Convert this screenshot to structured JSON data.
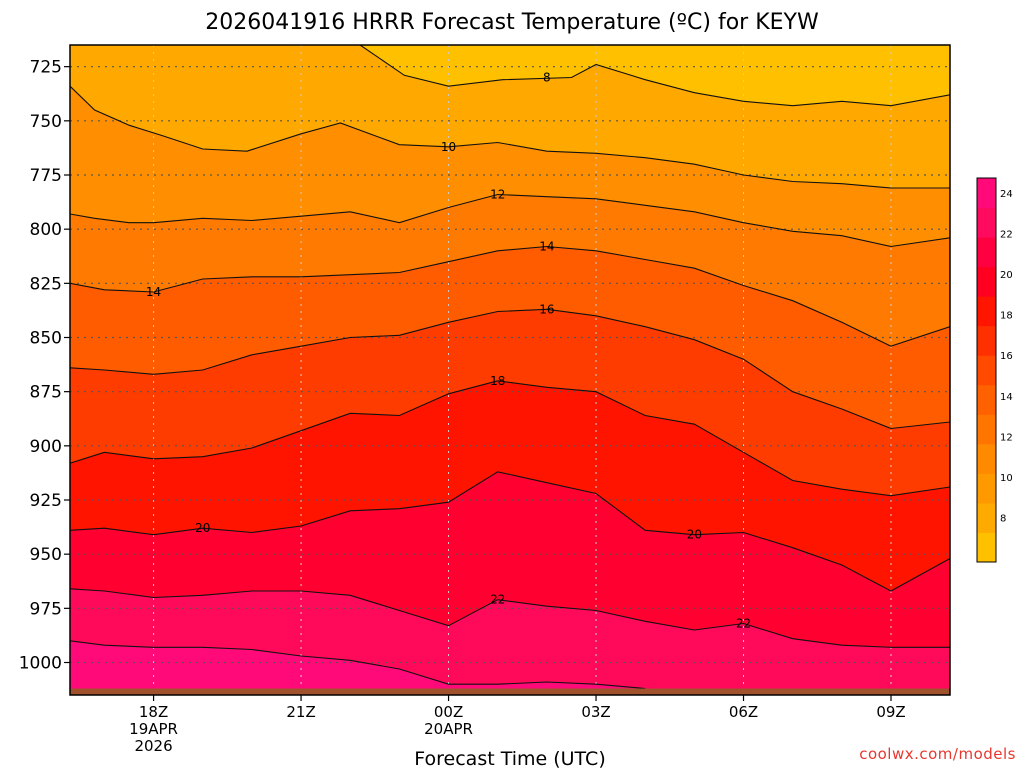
{
  "chart_data": {
    "type": "contour",
    "title": "2026041916 HRRR Forecast Temperature (ºC) for KEYW",
    "xlabel": "Forecast Time (UTC)",
    "ylabel": "",
    "credit": "coolwx.com/models",
    "x_range": [
      16.3,
      34.2
    ],
    "y_range": [
      715,
      1015
    ],
    "y_ticks": [
      725,
      750,
      775,
      800,
      825,
      850,
      875,
      900,
      925,
      950,
      975,
      1000
    ],
    "x_ticks": [
      {
        "x": 18,
        "lines": [
          "18Z",
          "19APR",
          "2026"
        ]
      },
      {
        "x": 21,
        "lines": [
          "21Z"
        ]
      },
      {
        "x": 24,
        "lines": [
          "00Z",
          "20APR"
        ]
      },
      {
        "x": 27,
        "lines": [
          "03Z"
        ]
      },
      {
        "x": 30,
        "lines": [
          "06Z"
        ]
      },
      {
        "x": 33,
        "lines": [
          "09Z"
        ]
      }
    ],
    "grid": true,
    "colorbar": {
      "ticks": [
        8,
        10,
        12,
        14,
        16,
        18,
        20,
        22,
        24
      ],
      "colors": [
        "#ffc000",
        "#ffaa00",
        "#ff9900",
        "#ff8a00",
        "#ff7500",
        "#ff6000",
        "#ff4a00",
        "#ff3000",
        "#ff1500",
        "#ff0020",
        "#ff0040",
        "#ff0a5e",
        "#ff0a78"
      ]
    },
    "contours": [
      {
        "level": 8,
        "points": [
          [
            22.2,
            715
          ],
          [
            23.1,
            729
          ],
          [
            24.0,
            734
          ],
          [
            25.1,
            731
          ],
          [
            26.5,
            730
          ],
          [
            27.0,
            724
          ],
          [
            28.0,
            731
          ],
          [
            29.0,
            737
          ],
          [
            30.0,
            741
          ],
          [
            31.0,
            743
          ],
          [
            32.0,
            741
          ],
          [
            33.0,
            743
          ],
          [
            34.2,
            738
          ]
        ]
      },
      {
        "level": 10,
        "points": [
          [
            16.3,
            734
          ],
          [
            16.8,
            745
          ],
          [
            17.5,
            752
          ],
          [
            18.2,
            757
          ],
          [
            19.0,
            763
          ],
          [
            19.9,
            764
          ],
          [
            21.0,
            756
          ],
          [
            21.8,
            751
          ],
          [
            23.0,
            761
          ],
          [
            24.0,
            762
          ],
          [
            25.0,
            760
          ],
          [
            26.0,
            764
          ],
          [
            27.0,
            765
          ],
          [
            28.0,
            767
          ],
          [
            29.0,
            770
          ],
          [
            30.0,
            775
          ],
          [
            31.0,
            778
          ],
          [
            32.0,
            779
          ],
          [
            33.0,
            781
          ],
          [
            34.2,
            781
          ]
        ]
      },
      {
        "level": 12,
        "points": [
          [
            16.3,
            793
          ],
          [
            16.8,
            795
          ],
          [
            17.5,
            797
          ],
          [
            18.0,
            797
          ],
          [
            19.0,
            795
          ],
          [
            20.0,
            796
          ],
          [
            21.0,
            794
          ],
          [
            22.0,
            792
          ],
          [
            23.0,
            797
          ],
          [
            24.0,
            790
          ],
          [
            25.0,
            784
          ],
          [
            26.0,
            785
          ],
          [
            27.0,
            786
          ],
          [
            28.0,
            789
          ],
          [
            29.0,
            792
          ],
          [
            30.0,
            797
          ],
          [
            31.0,
            801
          ],
          [
            32.0,
            803
          ],
          [
            33.0,
            808
          ],
          [
            34.2,
            804
          ]
        ]
      },
      {
        "level": 14,
        "points": [
          [
            16.3,
            825
          ],
          [
            17.0,
            828
          ],
          [
            18.0,
            829
          ],
          [
            19.0,
            823
          ],
          [
            20.0,
            822
          ],
          [
            21.0,
            822
          ],
          [
            22.0,
            821
          ],
          [
            23.0,
            820
          ],
          [
            24.0,
            815
          ],
          [
            25.0,
            810
          ],
          [
            26.0,
            808
          ],
          [
            27.0,
            810
          ],
          [
            28.0,
            814
          ],
          [
            29.0,
            818
          ],
          [
            30.0,
            826
          ],
          [
            31.0,
            833
          ],
          [
            32.0,
            843
          ],
          [
            33.0,
            854
          ],
          [
            34.2,
            845
          ]
        ]
      },
      {
        "level": 16,
        "points": [
          [
            16.3,
            864
          ],
          [
            17.0,
            865
          ],
          [
            18.0,
            867
          ],
          [
            19.0,
            865
          ],
          [
            20.0,
            858
          ],
          [
            21.0,
            854
          ],
          [
            22.0,
            850
          ],
          [
            23.0,
            849
          ],
          [
            24.0,
            843
          ],
          [
            25.0,
            838
          ],
          [
            26.0,
            837
          ],
          [
            27.0,
            840
          ],
          [
            28.0,
            845
          ],
          [
            29.0,
            851
          ],
          [
            30.0,
            860
          ],
          [
            31.0,
            875
          ],
          [
            32.0,
            883
          ],
          [
            33.0,
            892
          ],
          [
            34.2,
            889
          ]
        ]
      },
      {
        "level": 18,
        "points": [
          [
            16.3,
            908
          ],
          [
            17.0,
            903
          ],
          [
            18.0,
            906
          ],
          [
            19.0,
            905
          ],
          [
            20.0,
            901
          ],
          [
            21.0,
            893
          ],
          [
            22.0,
            885
          ],
          [
            23.0,
            886
          ],
          [
            24.0,
            876
          ],
          [
            25.0,
            870
          ],
          [
            26.0,
            873
          ],
          [
            27.0,
            875
          ],
          [
            28.0,
            886
          ],
          [
            29.0,
            890
          ],
          [
            30.0,
            903
          ],
          [
            31.0,
            916
          ],
          [
            32.0,
            920
          ],
          [
            33.0,
            923
          ],
          [
            34.2,
            919
          ]
        ]
      },
      {
        "level": 20,
        "points": [
          [
            16.3,
            939
          ],
          [
            17.0,
            938
          ],
          [
            18.0,
            941
          ],
          [
            19.0,
            938
          ],
          [
            20.0,
            940
          ],
          [
            21.0,
            937
          ],
          [
            22.0,
            930
          ],
          [
            23.0,
            929
          ],
          [
            24.0,
            926
          ],
          [
            25.0,
            912
          ],
          [
            26.0,
            917
          ],
          [
            27.0,
            922
          ],
          [
            28.0,
            939
          ],
          [
            29.0,
            941
          ],
          [
            30.0,
            940
          ],
          [
            31.0,
            947
          ],
          [
            32.0,
            955
          ],
          [
            33.0,
            967
          ],
          [
            34.2,
            952
          ]
        ]
      },
      {
        "level": 22,
        "points": [
          [
            16.3,
            966
          ],
          [
            17.0,
            967
          ],
          [
            18.0,
            970
          ],
          [
            19.0,
            969
          ],
          [
            20.0,
            967
          ],
          [
            21.0,
            967
          ],
          [
            22.0,
            969
          ],
          [
            23.0,
            976
          ],
          [
            24.0,
            983
          ],
          [
            25.0,
            971
          ],
          [
            26.0,
            974
          ],
          [
            27.0,
            976
          ],
          [
            28.0,
            981
          ],
          [
            29.0,
            985
          ],
          [
            30.0,
            982
          ],
          [
            31.0,
            989
          ],
          [
            32.0,
            992
          ],
          [
            33.0,
            993
          ],
          [
            34.2,
            993
          ]
        ]
      },
      {
        "level": 24,
        "points": [
          [
            16.3,
            990
          ],
          [
            17.0,
            992
          ],
          [
            18.0,
            993
          ],
          [
            19.0,
            993
          ],
          [
            20.0,
            994
          ],
          [
            21.0,
            997
          ],
          [
            22.0,
            999
          ],
          [
            23.0,
            1003
          ],
          [
            24.0,
            1010
          ],
          [
            25.0,
            1010
          ],
          [
            26.0,
            1009
          ],
          [
            27.0,
            1010
          ],
          [
            28.0,
            1012
          ]
        ]
      }
    ],
    "labels": [
      {
        "text": "8",
        "x": 26.0,
        "y": 730
      },
      {
        "text": "10",
        "x": 24.0,
        "y": 762
      },
      {
        "text": "12",
        "x": 25.0,
        "y": 784
      },
      {
        "text": "14",
        "x": 18.0,
        "y": 829
      },
      {
        "text": "14",
        "x": 26.0,
        "y": 808
      },
      {
        "text": "16",
        "x": 26.0,
        "y": 837
      },
      {
        "text": "18",
        "x": 25.0,
        "y": 870
      },
      {
        "text": "20",
        "x": 19.0,
        "y": 938
      },
      {
        "text": "20",
        "x": 29.0,
        "y": 941
      },
      {
        "text": "22",
        "x": 25.0,
        "y": 971
      },
      {
        "text": "22",
        "x": 30.0,
        "y": 982
      }
    ],
    "ground_level": 1012
  }
}
